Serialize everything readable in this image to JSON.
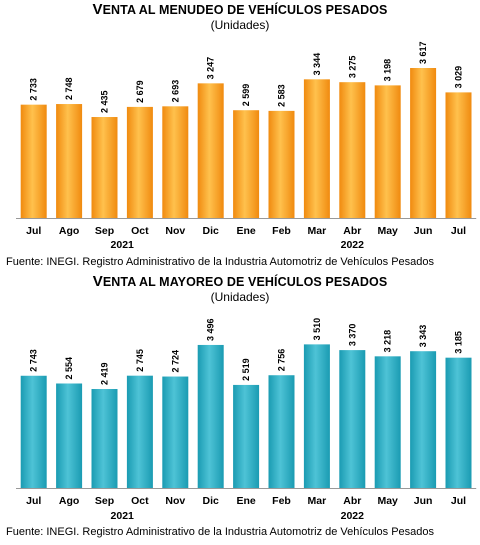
{
  "chart_data": [
    {
      "type": "bar",
      "title": "Venta al menudeo de vehículos pesados",
      "subtitle": "(Unidades)",
      "categories": [
        "Jul",
        "Ago",
        "Sep",
        "Oct",
        "Nov",
        "Dic",
        "Ene",
        "Feb",
        "Mar",
        "Abr",
        "May",
        "Jun",
        "Jul"
      ],
      "values": [
        2733,
        2748,
        2435,
        2679,
        2693,
        3247,
        2599,
        2583,
        3344,
        3275,
        3198,
        3617,
        3029
      ],
      "value_labels": [
        "2 733",
        "2 748",
        "2 435",
        "2 679",
        "2 693",
        "3 247",
        "2 599",
        "2 583",
        "3 344",
        "3 275",
        "3 198",
        "3 617",
        "3 029"
      ],
      "year_groups": [
        {
          "label": "2021",
          "start": 0,
          "end": 5
        },
        {
          "label": "2022",
          "start": 6,
          "end": 12
        }
      ],
      "ylim": [
        0,
        4000
      ],
      "grid": false,
      "bar_color": "#F08A0F",
      "bar_color_light": "#FFC14D",
      "source": "Fuente: INEGI. Registro Administrativo de la Industria Automotriz de Vehículos Pesados"
    },
    {
      "type": "bar",
      "title": "Venta al mayoreo de vehículos pesados",
      "subtitle": "(Unidades)",
      "categories": [
        "Jul",
        "Ago",
        "Sep",
        "Oct",
        "Nov",
        "Dic",
        "Ene",
        "Feb",
        "Mar",
        "Abr",
        "May",
        "Jun",
        "Jul"
      ],
      "values": [
        2743,
        2554,
        2419,
        2745,
        2724,
        3496,
        2519,
        2756,
        3510,
        3370,
        3218,
        3343,
        3185
      ],
      "value_labels": [
        "2 743",
        "2 554",
        "2 419",
        "2 745",
        "2 724",
        "3 496",
        "2 519",
        "2 756",
        "3 510",
        "3 370",
        "3 218",
        "3 343",
        "3 185"
      ],
      "year_groups": [
        {
          "label": "2021",
          "start": 0,
          "end": 5
        },
        {
          "label": "2022",
          "start": 6,
          "end": 12
        }
      ],
      "ylim": [
        0,
        4000
      ],
      "grid": false,
      "bar_color": "#1A9BB2",
      "bar_color_light": "#4EC3D6",
      "source": "Fuente: INEGI. Registro Administrativo de la Industria Automotriz de Vehículos Pesados"
    }
  ]
}
